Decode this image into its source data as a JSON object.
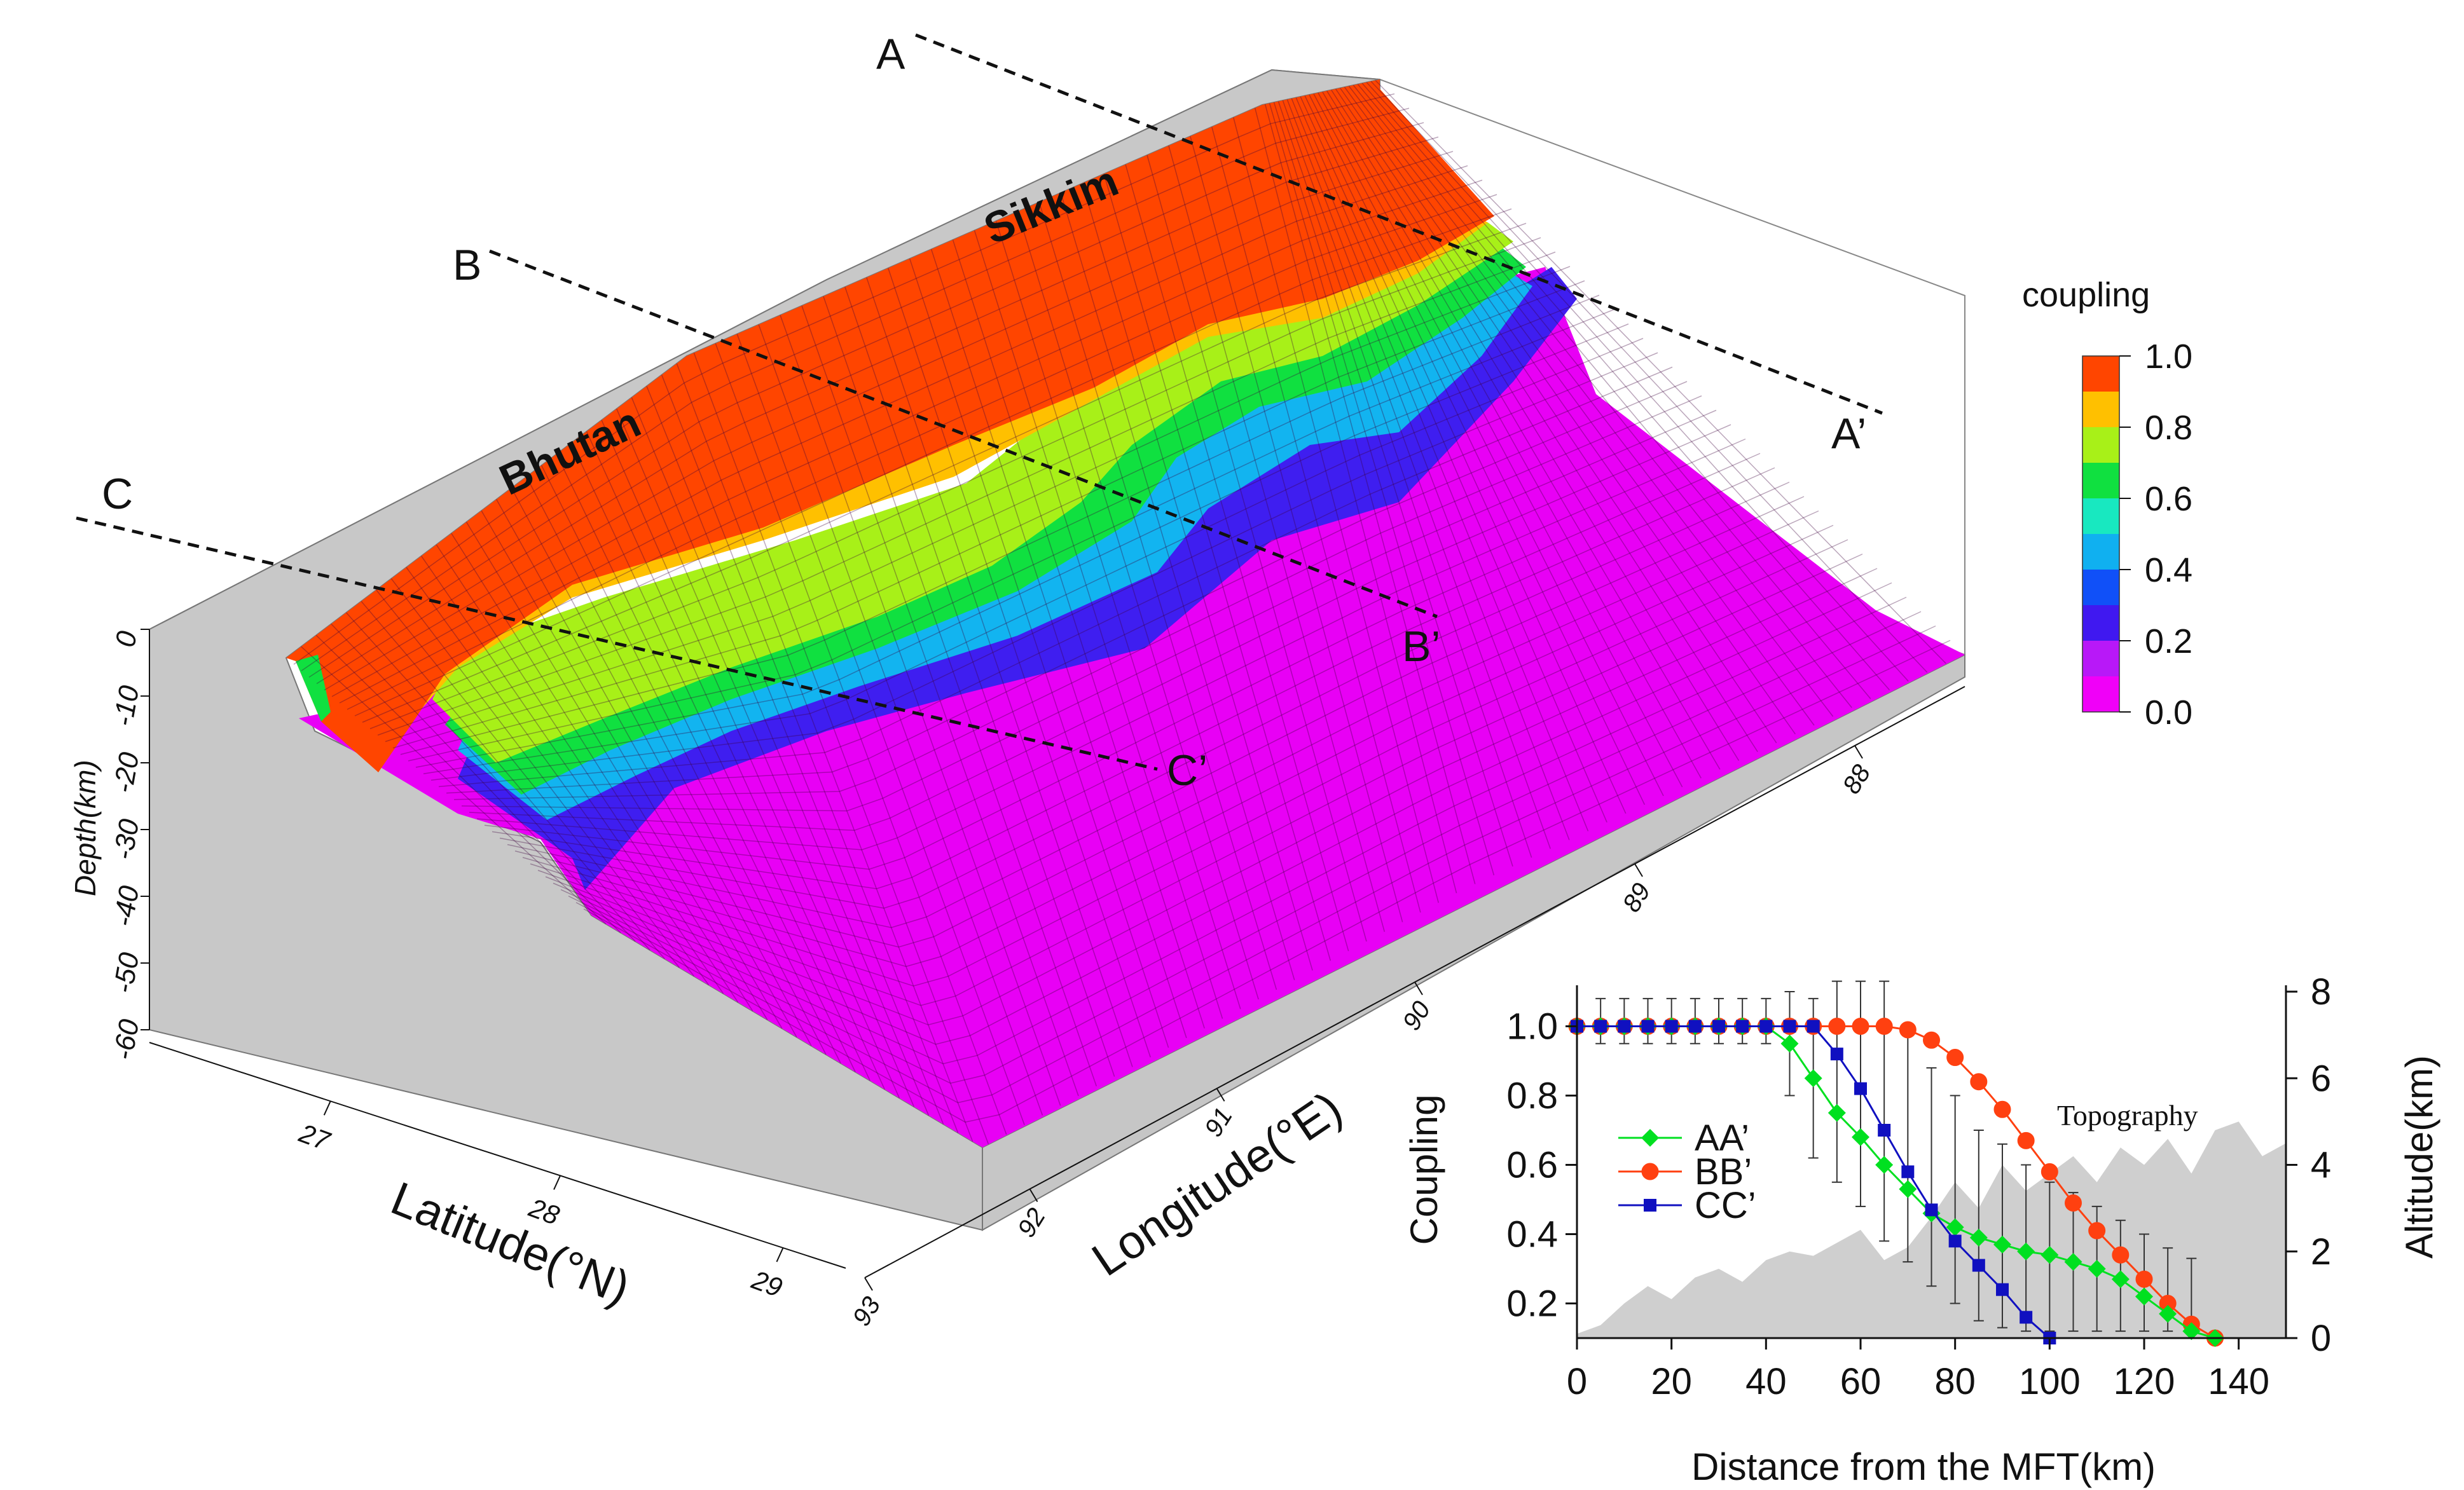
{
  "chart_data": [
    {
      "type": "surface3d",
      "title": "",
      "colorbar": {
        "title": "coupling",
        "ticks": [
          "1.0",
          "0.8",
          "0.6",
          "0.4",
          "0.2",
          "0.0"
        ],
        "colors": [
          "#ff4500",
          "#ffc000",
          "#a8f018",
          "#10e040",
          "#18e8c0",
          "#10b0f0",
          "#1050f8",
          "#4018f0",
          "#b818f8",
          "#f000f8"
        ]
      },
      "xlabel": "Latitude(°N)",
      "xticks": [
        "27",
        "28",
        "29"
      ],
      "ylabel": "Longitude(°E)",
      "yticks": [
        "88",
        "89",
        "90",
        "91",
        "92",
        "93"
      ],
      "zlabel": "Depth(km)",
      "zticks": [
        "0",
        "-10",
        "-20",
        "-30",
        "-40",
        "-50",
        "-60"
      ],
      "regions": [
        "Bhutan",
        "Sikkim"
      ],
      "profiles": [
        {
          "start": "A",
          "end": "A’"
        },
        {
          "start": "B",
          "end": "B’"
        },
        {
          "start": "C",
          "end": "C’"
        }
      ]
    },
    {
      "type": "line",
      "xlabel": "Distance from the MFT(km)",
      "ylabel": "Coupling",
      "y2label": "Altitude(km)",
      "xticks": [
        "0",
        "20",
        "40",
        "60",
        "80",
        "100",
        "120",
        "140"
      ],
      "yticks": [
        "1.0",
        "0.8",
        "0.6",
        "0.4",
        "0.2"
      ],
      "y2ticks": [
        "8",
        "6",
        "4",
        "2",
        "0"
      ],
      "xlim": [
        0,
        150
      ],
      "ylim": [
        0.1,
        1.1
      ],
      "y2lim": [
        0,
        8
      ],
      "annotation": "Topography",
      "series": [
        {
          "name": "AA’",
          "color": "#00e020",
          "marker": "diamond",
          "x": [
            0,
            5,
            10,
            15,
            20,
            25,
            30,
            35,
            40,
            45,
            50,
            55,
            60,
            65,
            70,
            75,
            80,
            85,
            90,
            95,
            100,
            105,
            110,
            115,
            120,
            125,
            130,
            135
          ],
          "y": [
            1.0,
            1.0,
            1.0,
            1.0,
            1.0,
            1.0,
            1.0,
            1.0,
            1.0,
            0.95,
            0.85,
            0.75,
            0.68,
            0.6,
            0.53,
            0.46,
            0.42,
            0.39,
            0.37,
            0.35,
            0.34,
            0.32,
            0.3,
            0.27,
            0.22,
            0.17,
            0.12,
            0.1
          ]
        },
        {
          "name": "BB’",
          "color": "#ff4010",
          "marker": "circle",
          "x": [
            0,
            5,
            10,
            15,
            20,
            25,
            30,
            35,
            40,
            45,
            50,
            55,
            60,
            65,
            70,
            75,
            80,
            85,
            90,
            95,
            100,
            105,
            110,
            115,
            120,
            125,
            130,
            135
          ],
          "y": [
            1.0,
            1.0,
            1.0,
            1.0,
            1.0,
            1.0,
            1.0,
            1.0,
            1.0,
            1.0,
            1.0,
            1.0,
            1.0,
            1.0,
            0.99,
            0.96,
            0.91,
            0.84,
            0.76,
            0.67,
            0.58,
            0.49,
            0.41,
            0.34,
            0.27,
            0.2,
            0.14,
            0.1
          ]
        },
        {
          "name": "CC’",
          "color": "#1010c0",
          "marker": "square",
          "x": [
            0,
            5,
            10,
            15,
            20,
            25,
            30,
            35,
            40,
            45,
            50,
            55,
            60,
            65,
            70,
            75,
            80,
            85,
            90,
            95,
            100
          ],
          "y": [
            1.0,
            1.0,
            1.0,
            1.0,
            1.0,
            1.0,
            1.0,
            1.0,
            1.0,
            1.0,
            1.0,
            0.92,
            0.82,
            0.7,
            0.58,
            0.47,
            0.38,
            0.31,
            0.24,
            0.16,
            0.1
          ]
        }
      ],
      "error_bars": [
        {
          "x": 5,
          "lo": 0.95,
          "hi": 1.08
        },
        {
          "x": 10,
          "lo": 0.95,
          "hi": 1.08
        },
        {
          "x": 15,
          "lo": 0.95,
          "hi": 1.08
        },
        {
          "x": 20,
          "lo": 0.95,
          "hi": 1.08
        },
        {
          "x": 25,
          "lo": 0.95,
          "hi": 1.08
        },
        {
          "x": 30,
          "lo": 0.95,
          "hi": 1.08
        },
        {
          "x": 35,
          "lo": 0.95,
          "hi": 1.08
        },
        {
          "x": 40,
          "lo": 0.95,
          "hi": 1.08
        },
        {
          "x": 45,
          "lo": 0.8,
          "hi": 1.1
        },
        {
          "x": 50,
          "lo": 0.62,
          "hi": 1.08
        },
        {
          "x": 55,
          "lo": 0.55,
          "hi": 1.13
        },
        {
          "x": 60,
          "lo": 0.48,
          "hi": 1.13
        },
        {
          "x": 65,
          "lo": 0.38,
          "hi": 1.13
        },
        {
          "x": 70,
          "lo": 0.32,
          "hi": 1.0
        },
        {
          "x": 75,
          "lo": 0.25,
          "hi": 0.88
        },
        {
          "x": 80,
          "lo": 0.2,
          "hi": 0.8
        },
        {
          "x": 85,
          "lo": 0.15,
          "hi": 0.7
        },
        {
          "x": 90,
          "lo": 0.13,
          "hi": 0.66
        },
        {
          "x": 95,
          "lo": 0.12,
          "hi": 0.6
        },
        {
          "x": 100,
          "lo": 0.12,
          "hi": 0.55
        },
        {
          "x": 105,
          "lo": 0.12,
          "hi": 0.52
        },
        {
          "x": 110,
          "lo": 0.12,
          "hi": 0.48
        },
        {
          "x": 115,
          "lo": 0.12,
          "hi": 0.44
        },
        {
          "x": 120,
          "lo": 0.12,
          "hi": 0.4
        },
        {
          "x": 125,
          "lo": 0.12,
          "hi": 0.36
        },
        {
          "x": 130,
          "lo": 0.12,
          "hi": 0.33
        }
      ],
      "topography": {
        "x": [
          0,
          5,
          10,
          15,
          20,
          25,
          30,
          35,
          40,
          45,
          50,
          55,
          60,
          65,
          70,
          75,
          80,
          85,
          90,
          95,
          100,
          105,
          110,
          115,
          120,
          125,
          130,
          135,
          140,
          145,
          150
        ],
        "altitude": [
          0.1,
          0.3,
          0.8,
          1.2,
          0.9,
          1.4,
          1.6,
          1.3,
          1.8,
          2.0,
          1.9,
          2.2,
          2.5,
          1.8,
          2.1,
          2.8,
          3.6,
          3.0,
          4.0,
          3.4,
          3.8,
          4.2,
          3.6,
          4.4,
          4.0,
          4.6,
          3.8,
          4.8,
          5.0,
          4.2,
          4.5
        ]
      }
    }
  ]
}
